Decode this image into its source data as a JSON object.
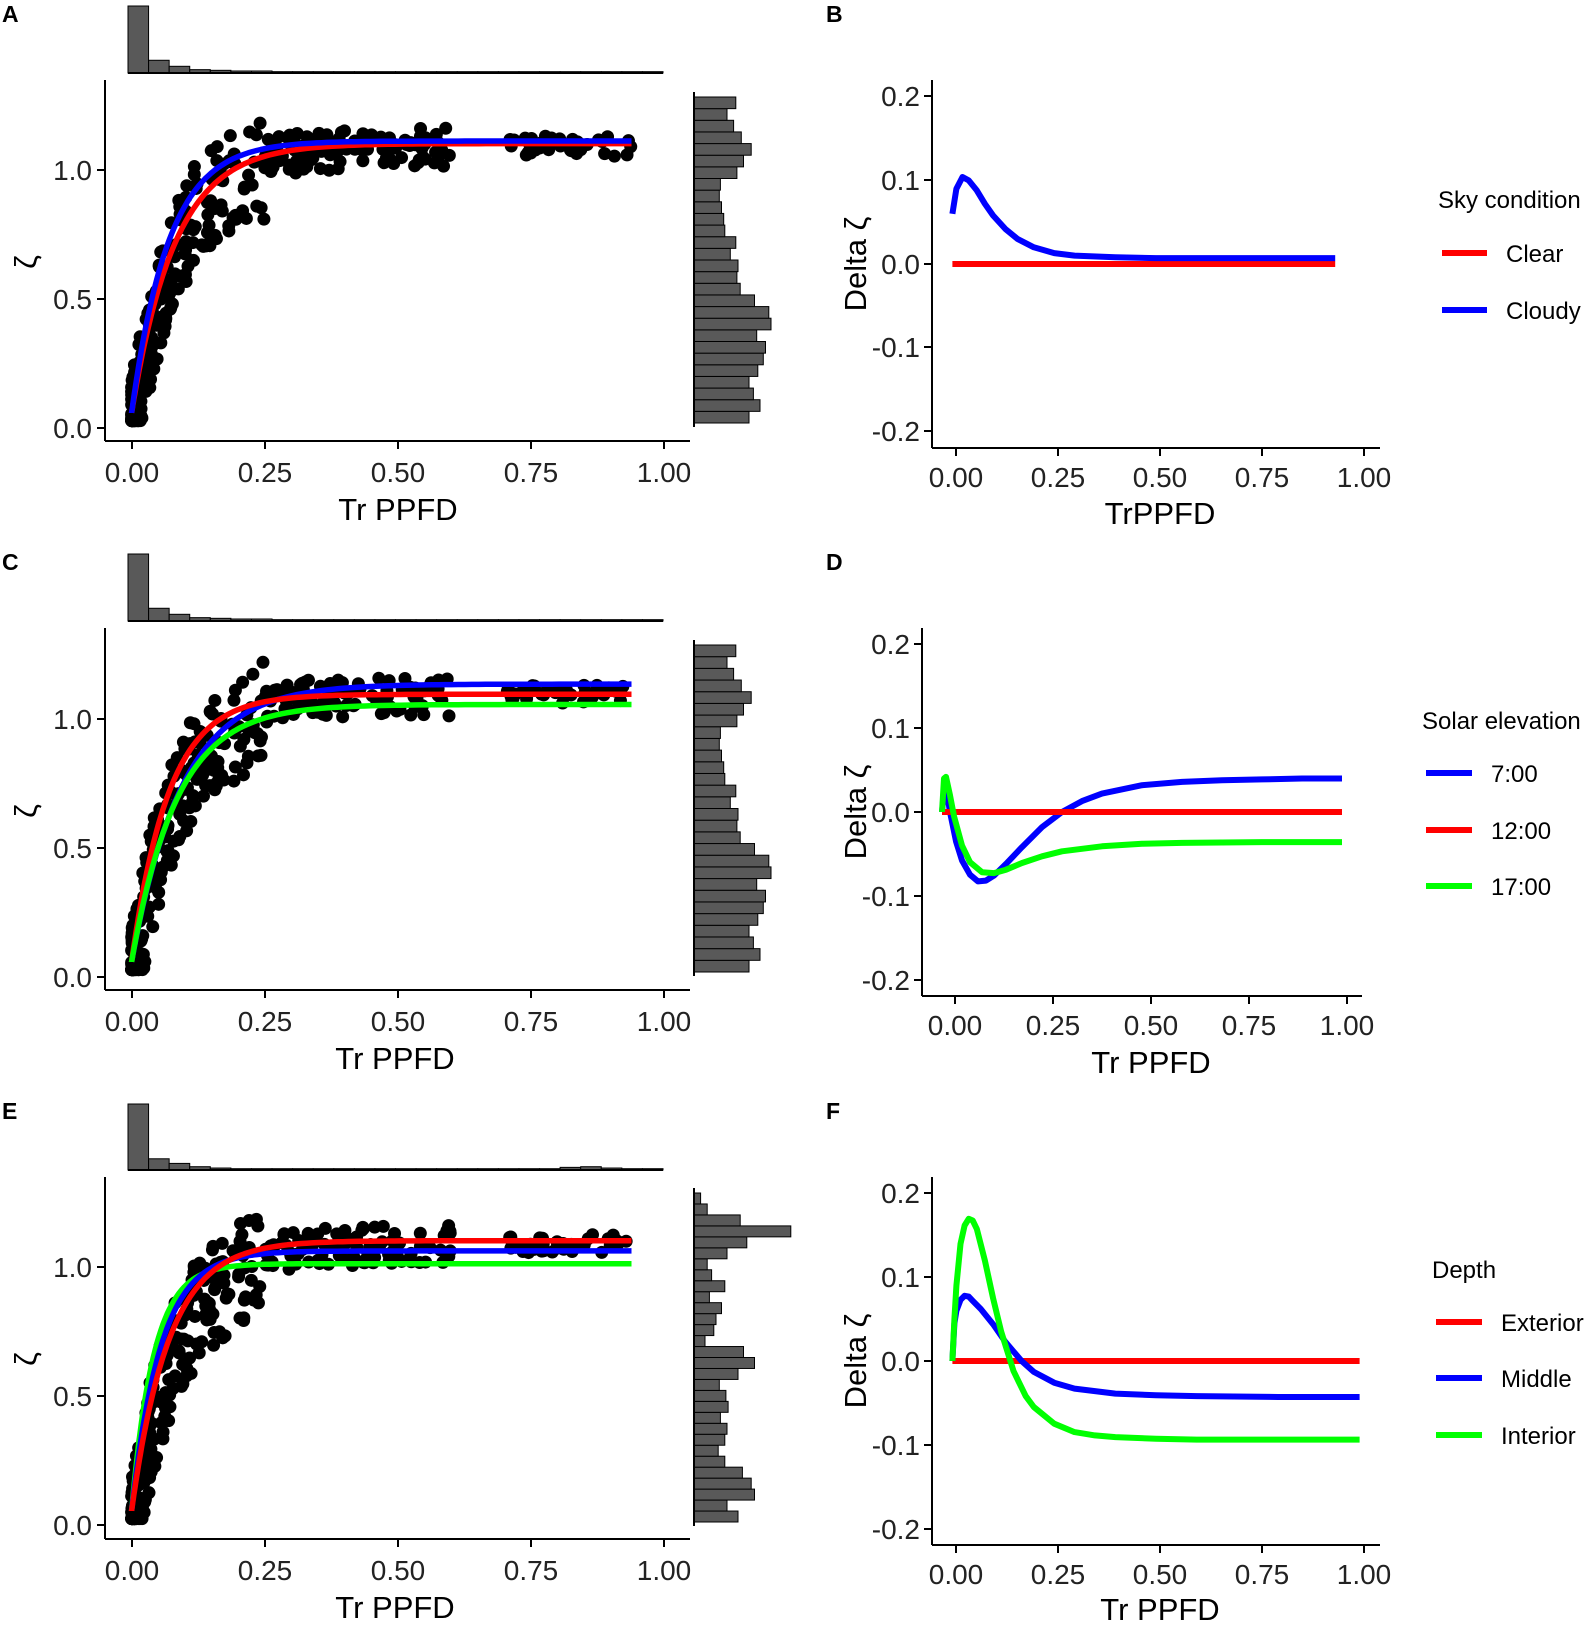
{
  "figure": {
    "colors": {
      "red": "#ff0000",
      "blue": "#0000ff",
      "green": "#00ff00",
      "point": "#000000",
      "bar": "#595959"
    },
    "panels": {
      "A": {
        "letter": "A",
        "xlabel": "Tr PPFD",
        "ylabel": "ζ",
        "xticks": [
          "0.00",
          "0.25",
          "0.50",
          "0.75",
          "1.00"
        ],
        "yticks": [
          "0.0",
          "0.5",
          "1.0"
        ],
        "xlim": [
          -0.05,
          1.05
        ],
        "ylim": [
          -0.06,
          1.36
        ],
        "series": [
          {
            "name": "red",
            "color": "#ff0000",
            "k": 0.082,
            "plateau": 1.11
          },
          {
            "name": "blue",
            "color": "#0000ff",
            "k": 0.07,
            "plateau": 1.12
          }
        ],
        "top_hist": [
          1.0,
          0.19,
          0.1,
          0.05,
          0.04,
          0.03,
          0.03,
          0.02,
          0.02,
          0.02,
          0.02,
          0.02,
          0.02,
          0.02,
          0.02,
          0.02,
          0.02,
          0.02,
          0.02,
          0.02,
          0.02,
          0.02,
          0.02,
          0.02,
          0.02,
          0.02
        ],
        "right_hist": [
          0.5,
          0.6,
          0.54,
          0.5,
          0.58,
          0.63,
          0.65,
          0.57,
          0.7,
          0.68,
          0.55,
          0.42,
          0.39,
          0.4,
          0.33,
          0.38,
          0.28,
          0.27,
          0.25,
          0.23,
          0.24,
          0.39,
          0.45,
          0.52,
          0.43,
          0.36,
          0.3,
          0.38
        ]
      },
      "B": {
        "letter": "B",
        "xlabel": "TrPPFD",
        "ylabel": "Delta ζ",
        "xticks": [
          "0.00",
          "0.25",
          "0.50",
          "0.75",
          "1.00"
        ],
        "yticks": [
          "-0.2",
          "-0.1",
          "0.0",
          "0.1",
          "0.2"
        ],
        "xlim": [
          -0.05,
          1.05
        ],
        "ylim": [
          -0.22,
          0.22
        ],
        "legend_title": "Sky condition",
        "legend": [
          "Clear",
          "Cloudy"
        ],
        "series": [
          {
            "name": "Clear",
            "color": "#ff0000",
            "x": [
              0,
              0.94
            ],
            "y": [
              0,
              0
            ]
          },
          {
            "name": "Cloudy",
            "color": "#0000ff",
            "x": [
              0,
              0.01,
              0.025,
              0.04,
              0.06,
              0.08,
              0.1,
              0.13,
              0.16,
              0.2,
              0.25,
              0.3,
              0.4,
              0.5,
              0.6,
              0.7,
              0.8,
              0.94
            ],
            "y": [
              0.06,
              0.09,
              0.104,
              0.1,
              0.088,
              0.072,
              0.058,
              0.042,
              0.03,
              0.02,
              0.013,
              0.01,
              0.008,
              0.007,
              0.007,
              0.007,
              0.007,
              0.007
            ]
          }
        ]
      },
      "C": {
        "letter": "C",
        "xlabel": "Tr PPFD",
        "ylabel": "ζ",
        "xticks": [
          "0.00",
          "0.25",
          "0.50",
          "0.75",
          "1.00"
        ],
        "yticks": [
          "0.0",
          "0.5",
          "1.0"
        ],
        "xlim": [
          -0.05,
          1.05
        ],
        "ylim": [
          -0.06,
          1.36
        ],
        "series": [
          {
            "name": "blue",
            "color": "#0000ff",
            "k": 0.095,
            "plateau": 1.14
          },
          {
            "name": "red",
            "color": "#ff0000",
            "k": 0.07,
            "plateau": 1.1
          },
          {
            "name": "green",
            "color": "#00ff00",
            "k": 0.085,
            "plateau": 1.06
          }
        ],
        "top_hist": [
          1.0,
          0.19,
          0.1,
          0.05,
          0.04,
          0.03,
          0.03,
          0.02,
          0.02,
          0.02,
          0.02,
          0.02,
          0.02,
          0.02,
          0.02,
          0.02,
          0.02,
          0.02,
          0.02,
          0.02,
          0.02,
          0.02,
          0.02,
          0.02,
          0.02,
          0.02
        ],
        "right_hist": [
          0.5,
          0.6,
          0.54,
          0.5,
          0.58,
          0.63,
          0.65,
          0.57,
          0.7,
          0.68,
          0.55,
          0.42,
          0.39,
          0.4,
          0.33,
          0.38,
          0.28,
          0.27,
          0.25,
          0.23,
          0.24,
          0.39,
          0.45,
          0.52,
          0.43,
          0.36,
          0.3,
          0.38
        ]
      },
      "D": {
        "letter": "D",
        "xlabel": "Tr PPFD",
        "ylabel": "Delta ζ",
        "xticks": [
          "0.00",
          "0.25",
          "0.50",
          "0.75",
          "1.00"
        ],
        "yticks": [
          "-0.2",
          "-0.1",
          "0.0",
          "0.1",
          "0.2"
        ],
        "xlim": [
          -0.05,
          1.05
        ],
        "ylim": [
          -0.22,
          0.22
        ],
        "legend_title": "Solar elevation",
        "legend": [
          "7:00",
          "12:00",
          "17:00"
        ],
        "series": [
          {
            "name": "7:00",
            "color": "#0000ff",
            "x": [
              0,
              0.005,
              0.01,
              0.02,
              0.035,
              0.05,
              0.07,
              0.09,
              0.11,
              0.13,
              0.16,
              0.2,
              0.25,
              0.3,
              0.35,
              0.4,
              0.5,
              0.6,
              0.7,
              0.8,
              0.9,
              1.0
            ],
            "y": [
              0.0,
              0.025,
              0.03,
              0.0,
              -0.035,
              -0.058,
              -0.075,
              -0.083,
              -0.082,
              -0.076,
              -0.062,
              -0.042,
              -0.018,
              0.0,
              0.013,
              0.022,
              0.032,
              0.036,
              0.038,
              0.039,
              0.04,
              0.04
            ]
          },
          {
            "name": "12:00",
            "color": "#ff0000",
            "x": [
              0,
              1.0
            ],
            "y": [
              0,
              0
            ]
          },
          {
            "name": "17:00",
            "color": "#00ff00",
            "x": [
              0,
              0.005,
              0.01,
              0.02,
              0.03,
              0.05,
              0.07,
              0.1,
              0.13,
              0.16,
              0.2,
              0.25,
              0.3,
              0.4,
              0.5,
              0.6,
              0.8,
              1.0
            ],
            "y": [
              0.0,
              0.04,
              0.042,
              0.02,
              -0.005,
              -0.04,
              -0.06,
              -0.072,
              -0.073,
              -0.069,
              -0.061,
              -0.053,
              -0.047,
              -0.041,
              -0.038,
              -0.037,
              -0.036,
              -0.036
            ]
          }
        ]
      },
      "E": {
        "letter": "E",
        "xlabel": "Tr PPFD",
        "ylabel": "ζ",
        "xticks": [
          "0.00",
          "0.25",
          "0.50",
          "0.75",
          "1.00"
        ],
        "yticks": [
          "0.0",
          "0.5",
          "1.0"
        ],
        "xlim": [
          -0.05,
          1.05
        ],
        "ylim": [
          -0.06,
          1.36
        ],
        "series": [
          {
            "name": "green",
            "color": "#00ff00",
            "k": 0.042,
            "plateau": 1.02
          },
          {
            "name": "blue",
            "color": "#0000ff",
            "k": 0.055,
            "plateau": 1.07
          },
          {
            "name": "red",
            "color": "#ff0000",
            "k": 0.07,
            "plateau": 1.11
          }
        ],
        "top_hist": [
          1.0,
          0.17,
          0.1,
          0.05,
          0.03,
          0.02,
          0.02,
          0.02,
          0.02,
          0.02,
          0.02,
          0.02,
          0.02,
          0.02,
          0.02,
          0.02,
          0.02,
          0.02,
          0.02,
          0.02,
          0.02,
          0.04,
          0.05,
          0.03,
          0.02,
          0.02
        ],
        "right_hist": [
          0.4,
          0.3,
          0.55,
          0.52,
          0.44,
          0.28,
          0.22,
          0.28,
          0.3,
          0.24,
          0.31,
          0.29,
          0.23,
          0.4,
          0.55,
          0.45,
          0.1,
          0.18,
          0.2,
          0.25,
          0.14,
          0.28,
          0.16,
          0.12,
          0.3,
          0.48,
          0.88,
          0.42,
          0.12,
          0.06
        ]
      },
      "F": {
        "letter": "F",
        "xlabel": "Tr PPFD",
        "ylabel": "Delta ζ",
        "xticks": [
          "0.00",
          "0.25",
          "0.50",
          "0.75",
          "1.00"
        ],
        "yticks": [
          "-0.2",
          "-0.1",
          "0.0",
          "0.1",
          "0.2"
        ],
        "xlim": [
          -0.05,
          1.05
        ],
        "ylim": [
          -0.22,
          0.22
        ],
        "legend_title": "Depth",
        "legend": [
          "Exterior",
          "Middle",
          "Interior"
        ],
        "series": [
          {
            "name": "Exterior",
            "color": "#ff0000",
            "x": [
              0,
              1.0
            ],
            "y": [
              0,
              0
            ]
          },
          {
            "name": "Middle",
            "color": "#0000ff",
            "x": [
              0,
              0.005,
              0.01,
              0.02,
              0.03,
              0.04,
              0.05,
              0.07,
              0.1,
              0.13,
              0.17,
              0.2,
              0.25,
              0.3,
              0.4,
              0.5,
              0.6,
              0.8,
              1.0
            ],
            "y": [
              0.0,
              0.045,
              0.06,
              0.073,
              0.078,
              0.077,
              0.072,
              0.062,
              0.044,
              0.023,
              0.0,
              -0.013,
              -0.026,
              -0.033,
              -0.039,
              -0.041,
              -0.042,
              -0.043,
              -0.043
            ]
          },
          {
            "name": "Interior",
            "color": "#00ff00",
            "x": [
              0,
              0.005,
              0.01,
              0.02,
              0.03,
              0.04,
              0.05,
              0.06,
              0.08,
              0.1,
              0.12,
              0.15,
              0.18,
              0.2,
              0.25,
              0.3,
              0.35,
              0.4,
              0.5,
              0.6,
              0.8,
              1.0
            ],
            "y": [
              0.0,
              0.05,
              0.09,
              0.14,
              0.162,
              0.17,
              0.168,
              0.158,
              0.12,
              0.075,
              0.035,
              -0.012,
              -0.042,
              -0.055,
              -0.075,
              -0.085,
              -0.089,
              -0.091,
              -0.093,
              -0.094,
              -0.094,
              -0.094
            ]
          }
        ]
      }
    }
  }
}
